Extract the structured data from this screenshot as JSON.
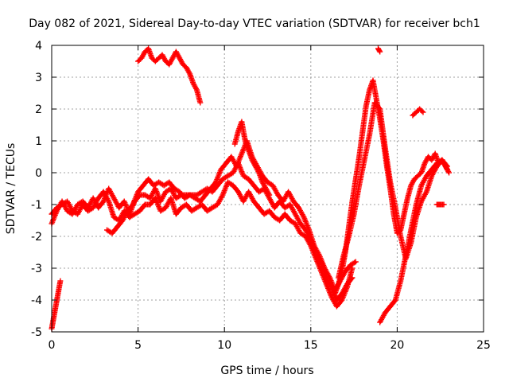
{
  "chart_data": {
    "type": "scatter",
    "title": "Day 082 of 2021, Sidereal Day-to-day VTEC variation (SDTVAR) for receiver bch1",
    "xlabel": "GPS time / hours",
    "ylabel": "SDTVAR / TECUs",
    "xlim": [
      0,
      25
    ],
    "ylim": [
      -5,
      4
    ],
    "x_ticks": [
      0,
      5,
      10,
      15,
      20,
      25
    ],
    "y_ticks": [
      -5,
      -4,
      -3,
      -2,
      -1,
      0,
      1,
      2,
      3,
      4
    ],
    "x_tick_labels": [
      "0",
      "5",
      "10",
      "15",
      "20",
      "25"
    ],
    "y_tick_labels": [
      "-5",
      "-4",
      "-3",
      "-2",
      "-1",
      "0",
      "1",
      "2",
      "3",
      "4"
    ],
    "grid": true,
    "marker": "plus",
    "color": "#ff0000",
    "series": [
      {
        "values": [
          [
            0.0,
            -1.6
          ],
          [
            0.3,
            -1.2
          ],
          [
            0.6,
            -0.9
          ],
          [
            0.9,
            -1.2
          ],
          [
            1.2,
            -1.3
          ],
          [
            1.5,
            -1.0
          ],
          [
            1.8,
            -0.9
          ],
          [
            2.1,
            -1.1
          ],
          [
            2.4,
            -0.8
          ],
          [
            2.7,
            -1.1
          ],
          [
            3.0,
            -0.9
          ],
          [
            3.3,
            -0.5
          ],
          [
            3.6,
            -0.8
          ],
          [
            3.9,
            -1.1
          ],
          [
            4.2,
            -0.9
          ],
          [
            4.5,
            -1.3
          ],
          [
            4.8,
            -0.9
          ],
          [
            5.1,
            -0.7
          ],
          [
            5.4,
            -0.7
          ],
          [
            5.7,
            -0.8
          ],
          [
            6.0,
            -0.5
          ],
          [
            6.3,
            -0.9
          ],
          [
            6.6,
            -0.6
          ],
          [
            6.9,
            -0.5
          ],
          [
            7.2,
            -0.8
          ],
          [
            7.5,
            -0.7
          ],
          [
            7.8,
            -0.7
          ],
          [
            8.1,
            -0.7
          ],
          [
            8.4,
            -0.7
          ],
          [
            8.7,
            -0.6
          ],
          [
            9.0,
            -0.5
          ],
          [
            9.3,
            -0.6
          ],
          [
            9.6,
            -0.4
          ],
          [
            9.9,
            -0.2
          ],
          [
            10.2,
            -0.1
          ],
          [
            10.5,
            0.0
          ],
          [
            10.8,
            0.3
          ],
          [
            11.1,
            -0.1
          ],
          [
            11.4,
            -0.2
          ],
          [
            11.7,
            -0.4
          ],
          [
            12.0,
            -0.6
          ],
          [
            12.3,
            -0.5
          ],
          [
            12.6,
            -0.8
          ],
          [
            12.9,
            -1.1
          ],
          [
            13.2,
            -0.9
          ],
          [
            13.5,
            -1.1
          ],
          [
            13.8,
            -1.0
          ],
          [
            14.1,
            -1.3
          ],
          [
            14.4,
            -1.6
          ],
          [
            14.7,
            -1.8
          ],
          [
            15.0,
            -2.1
          ],
          [
            15.3,
            -2.6
          ],
          [
            15.6,
            -2.8
          ],
          [
            15.9,
            -3.3
          ],
          [
            16.2,
            -3.6
          ],
          [
            16.5,
            -4.0
          ],
          [
            16.8,
            -3.8
          ],
          [
            17.1,
            -3.5
          ],
          [
            17.4,
            -3.3
          ]
        ]
      },
      {
        "values": [
          [
            0.0,
            -1.3
          ],
          [
            0.3,
            -1.1
          ],
          [
            0.6,
            -1.0
          ],
          [
            0.9,
            -0.9
          ],
          [
            1.2,
            -1.2
          ],
          [
            1.5,
            -1.3
          ],
          [
            1.8,
            -1.0
          ],
          [
            2.1,
            -1.2
          ],
          [
            2.4,
            -1.1
          ],
          [
            2.7,
            -0.8
          ],
          [
            3.0,
            -0.6
          ],
          [
            3.3,
            -0.9
          ],
          [
            3.6,
            -1.4
          ],
          [
            3.9,
            -1.5
          ],
          [
            4.2,
            -1.2
          ],
          [
            4.5,
            -1.4
          ],
          [
            4.8,
            -1.3
          ],
          [
            5.1,
            -1.2
          ],
          [
            5.4,
            -1.0
          ],
          [
            5.7,
            -1.0
          ],
          [
            6.0,
            -0.8
          ],
          [
            6.3,
            -1.2
          ],
          [
            6.6,
            -1.1
          ],
          [
            6.9,
            -0.8
          ],
          [
            7.2,
            -1.3
          ],
          [
            7.5,
            -1.1
          ],
          [
            7.8,
            -1.0
          ],
          [
            8.1,
            -1.2
          ],
          [
            8.4,
            -1.1
          ],
          [
            8.7,
            -1.0
          ],
          [
            9.0,
            -1.2
          ],
          [
            9.3,
            -1.1
          ],
          [
            9.6,
            -1.0
          ],
          [
            9.9,
            -0.7
          ],
          [
            10.2,
            -0.3
          ],
          [
            10.5,
            -0.4
          ],
          [
            10.8,
            -0.6
          ],
          [
            11.1,
            -0.9
          ],
          [
            11.4,
            -0.6
          ],
          [
            11.7,
            -0.9
          ],
          [
            12.0,
            -1.1
          ],
          [
            12.3,
            -1.3
          ],
          [
            12.6,
            -1.2
          ],
          [
            12.9,
            -1.4
          ],
          [
            13.2,
            -1.5
          ],
          [
            13.5,
            -1.3
          ],
          [
            13.8,
            -1.5
          ],
          [
            14.1,
            -1.6
          ],
          [
            14.4,
            -1.9
          ],
          [
            14.7,
            -2.0
          ],
          [
            15.0,
            -2.3
          ],
          [
            15.3,
            -2.7
          ],
          [
            15.6,
            -3.1
          ],
          [
            15.9,
            -3.5
          ],
          [
            16.2,
            -3.9
          ],
          [
            16.5,
            -4.2
          ],
          [
            16.8,
            -4.0
          ],
          [
            17.1,
            -3.6
          ],
          [
            17.4,
            -3.0
          ]
        ]
      },
      {
        "values": [
          [
            3.2,
            -1.8
          ],
          [
            3.5,
            -1.9
          ],
          [
            3.8,
            -1.7
          ],
          [
            4.1,
            -1.5
          ],
          [
            4.4,
            -1.2
          ],
          [
            4.7,
            -1.0
          ],
          [
            5.0,
            -0.6
          ],
          [
            5.3,
            -0.4
          ],
          [
            5.6,
            -0.2
          ],
          [
            5.9,
            -0.4
          ],
          [
            6.2,
            -0.3
          ],
          [
            6.5,
            -0.4
          ],
          [
            6.8,
            -0.3
          ],
          [
            7.1,
            -0.5
          ],
          [
            7.4,
            -0.6
          ],
          [
            7.7,
            -0.8
          ],
          [
            8.0,
            -0.7
          ],
          [
            8.3,
            -0.8
          ],
          [
            8.6,
            -0.9
          ],
          [
            8.9,
            -0.7
          ],
          [
            9.2,
            -0.5
          ],
          [
            9.5,
            -0.3
          ],
          [
            9.8,
            0.1
          ],
          [
            10.1,
            0.3
          ],
          [
            10.4,
            0.5
          ],
          [
            10.7,
            0.2
          ],
          [
            11.0,
            0.6
          ],
          [
            11.3,
            1.0
          ],
          [
            11.6,
            0.5
          ],
          [
            11.9,
            0.2
          ],
          [
            12.2,
            -0.1
          ],
          [
            12.5,
            -0.3
          ],
          [
            12.8,
            -0.4
          ],
          [
            13.1,
            -0.7
          ],
          [
            13.4,
            -0.9
          ],
          [
            13.7,
            -0.6
          ],
          [
            14.0,
            -0.9
          ],
          [
            14.3,
            -1.1
          ],
          [
            14.6,
            -1.4
          ],
          [
            14.9,
            -1.8
          ],
          [
            15.2,
            -2.3
          ],
          [
            15.5,
            -2.6
          ],
          [
            15.8,
            -3.0
          ],
          [
            16.1,
            -3.3
          ],
          [
            16.4,
            -3.7
          ],
          [
            16.7,
            -3.4
          ],
          [
            17.0,
            -3.1
          ],
          [
            17.3,
            -2.9
          ],
          [
            17.6,
            -2.8
          ]
        ]
      },
      {
        "values": [
          [
            10.6,
            0.9
          ],
          [
            10.8,
            1.3
          ],
          [
            11.0,
            1.6
          ],
          [
            11.2,
            1.0
          ],
          [
            11.4,
            0.7
          ],
          [
            11.6,
            0.4
          ],
          [
            11.8,
            0.2
          ],
          [
            12.0,
            0.0
          ],
          [
            12.2,
            -0.3
          ],
          [
            12.4,
            -0.5
          ],
          [
            12.6,
            -0.7
          ]
        ]
      },
      {
        "values": [
          [
            0.0,
            -4.9
          ],
          [
            0.1,
            -4.6
          ],
          [
            0.2,
            -4.3
          ],
          [
            0.3,
            -4.0
          ],
          [
            0.4,
            -3.7
          ],
          [
            0.5,
            -3.4
          ]
        ]
      },
      {
        "values": [
          [
            5.0,
            3.5
          ],
          [
            5.2,
            3.6
          ],
          [
            5.4,
            3.8
          ],
          [
            5.6,
            3.9
          ],
          [
            5.8,
            3.6
          ],
          [
            6.0,
            3.5
          ],
          [
            6.2,
            3.6
          ],
          [
            6.4,
            3.7
          ],
          [
            6.6,
            3.5
          ],
          [
            6.8,
            3.4
          ],
          [
            7.0,
            3.6
          ],
          [
            7.2,
            3.8
          ],
          [
            7.4,
            3.6
          ],
          [
            7.6,
            3.4
          ],
          [
            7.8,
            3.3
          ],
          [
            8.0,
            3.1
          ],
          [
            8.2,
            2.8
          ],
          [
            8.4,
            2.6
          ],
          [
            8.6,
            2.2
          ]
        ]
      },
      {
        "values": [
          [
            16.4,
            -3.8
          ],
          [
            16.6,
            -3.5
          ],
          [
            16.8,
            -3.1
          ],
          [
            17.0,
            -2.5
          ],
          [
            17.2,
            -1.7
          ],
          [
            17.4,
            -0.9
          ],
          [
            17.6,
            -0.2
          ],
          [
            17.8,
            0.5
          ],
          [
            18.0,
            1.3
          ],
          [
            18.2,
            2.1
          ],
          [
            18.4,
            2.6
          ],
          [
            18.6,
            2.9
          ],
          [
            18.8,
            2.3
          ],
          [
            19.0,
            1.7
          ],
          [
            19.2,
            1.0
          ],
          [
            19.4,
            0.2
          ],
          [
            19.6,
            -0.5
          ],
          [
            19.8,
            -1.3
          ],
          [
            20.0,
            -1.9
          ],
          [
            20.2,
            -1.8
          ],
          [
            20.4,
            -1.3
          ],
          [
            20.6,
            -0.8
          ],
          [
            20.8,
            -0.4
          ],
          [
            21.0,
            -0.2
          ],
          [
            21.2,
            -0.1
          ],
          [
            21.4,
            0.0
          ],
          [
            21.6,
            0.3
          ],
          [
            21.8,
            0.5
          ],
          [
            22.0,
            0.4
          ],
          [
            22.2,
            0.6
          ],
          [
            22.4,
            0.3
          ],
          [
            22.6,
            0.4
          ],
          [
            22.8,
            0.2
          ],
          [
            23.0,
            0.0
          ]
        ]
      },
      {
        "values": [
          [
            16.6,
            -3.3
          ],
          [
            16.9,
            -2.6
          ],
          [
            17.2,
            -2.0
          ],
          [
            17.5,
            -1.3
          ],
          [
            17.8,
            -0.4
          ],
          [
            18.1,
            0.4
          ],
          [
            18.4,
            1.2
          ],
          [
            18.7,
            2.2
          ],
          [
            19.0,
            2.0
          ],
          [
            19.3,
            0.8
          ],
          [
            19.6,
            -0.3
          ],
          [
            19.9,
            -1.1
          ],
          [
            20.2,
            -2.0
          ],
          [
            20.5,
            -2.7
          ],
          [
            20.8,
            -2.2
          ],
          [
            21.1,
            -1.4
          ],
          [
            21.4,
            -0.9
          ],
          [
            21.7,
            -0.6
          ],
          [
            22.0,
            -0.1
          ],
          [
            22.3,
            0.2
          ],
          [
            22.6,
            0.4
          ],
          [
            22.9,
            0.1
          ]
        ]
      },
      {
        "values": [
          [
            19.0,
            -4.7
          ],
          [
            19.3,
            -4.4
          ],
          [
            19.6,
            -4.2
          ],
          [
            19.9,
            -4.0
          ],
          [
            20.2,
            -3.4
          ],
          [
            20.5,
            -2.6
          ],
          [
            20.8,
            -1.8
          ],
          [
            21.1,
            -1.0
          ],
          [
            21.4,
            -0.4
          ],
          [
            21.7,
            -0.1
          ],
          [
            22.0,
            0.1
          ],
          [
            22.3,
            0.3
          ],
          [
            22.6,
            0.4
          ],
          [
            22.9,
            0.2
          ]
        ]
      },
      {
        "values": [
          [
            18.9,
            3.9
          ],
          [
            19.0,
            3.8
          ]
        ]
      },
      {
        "values": [
          [
            20.9,
            1.8
          ],
          [
            21.1,
            1.9
          ],
          [
            21.3,
            2.0
          ],
          [
            21.5,
            1.9
          ]
        ]
      },
      {
        "values": [
          [
            22.3,
            -1.0
          ],
          [
            22.5,
            -1.0
          ],
          [
            22.7,
            -1.0
          ]
        ]
      }
    ]
  }
}
